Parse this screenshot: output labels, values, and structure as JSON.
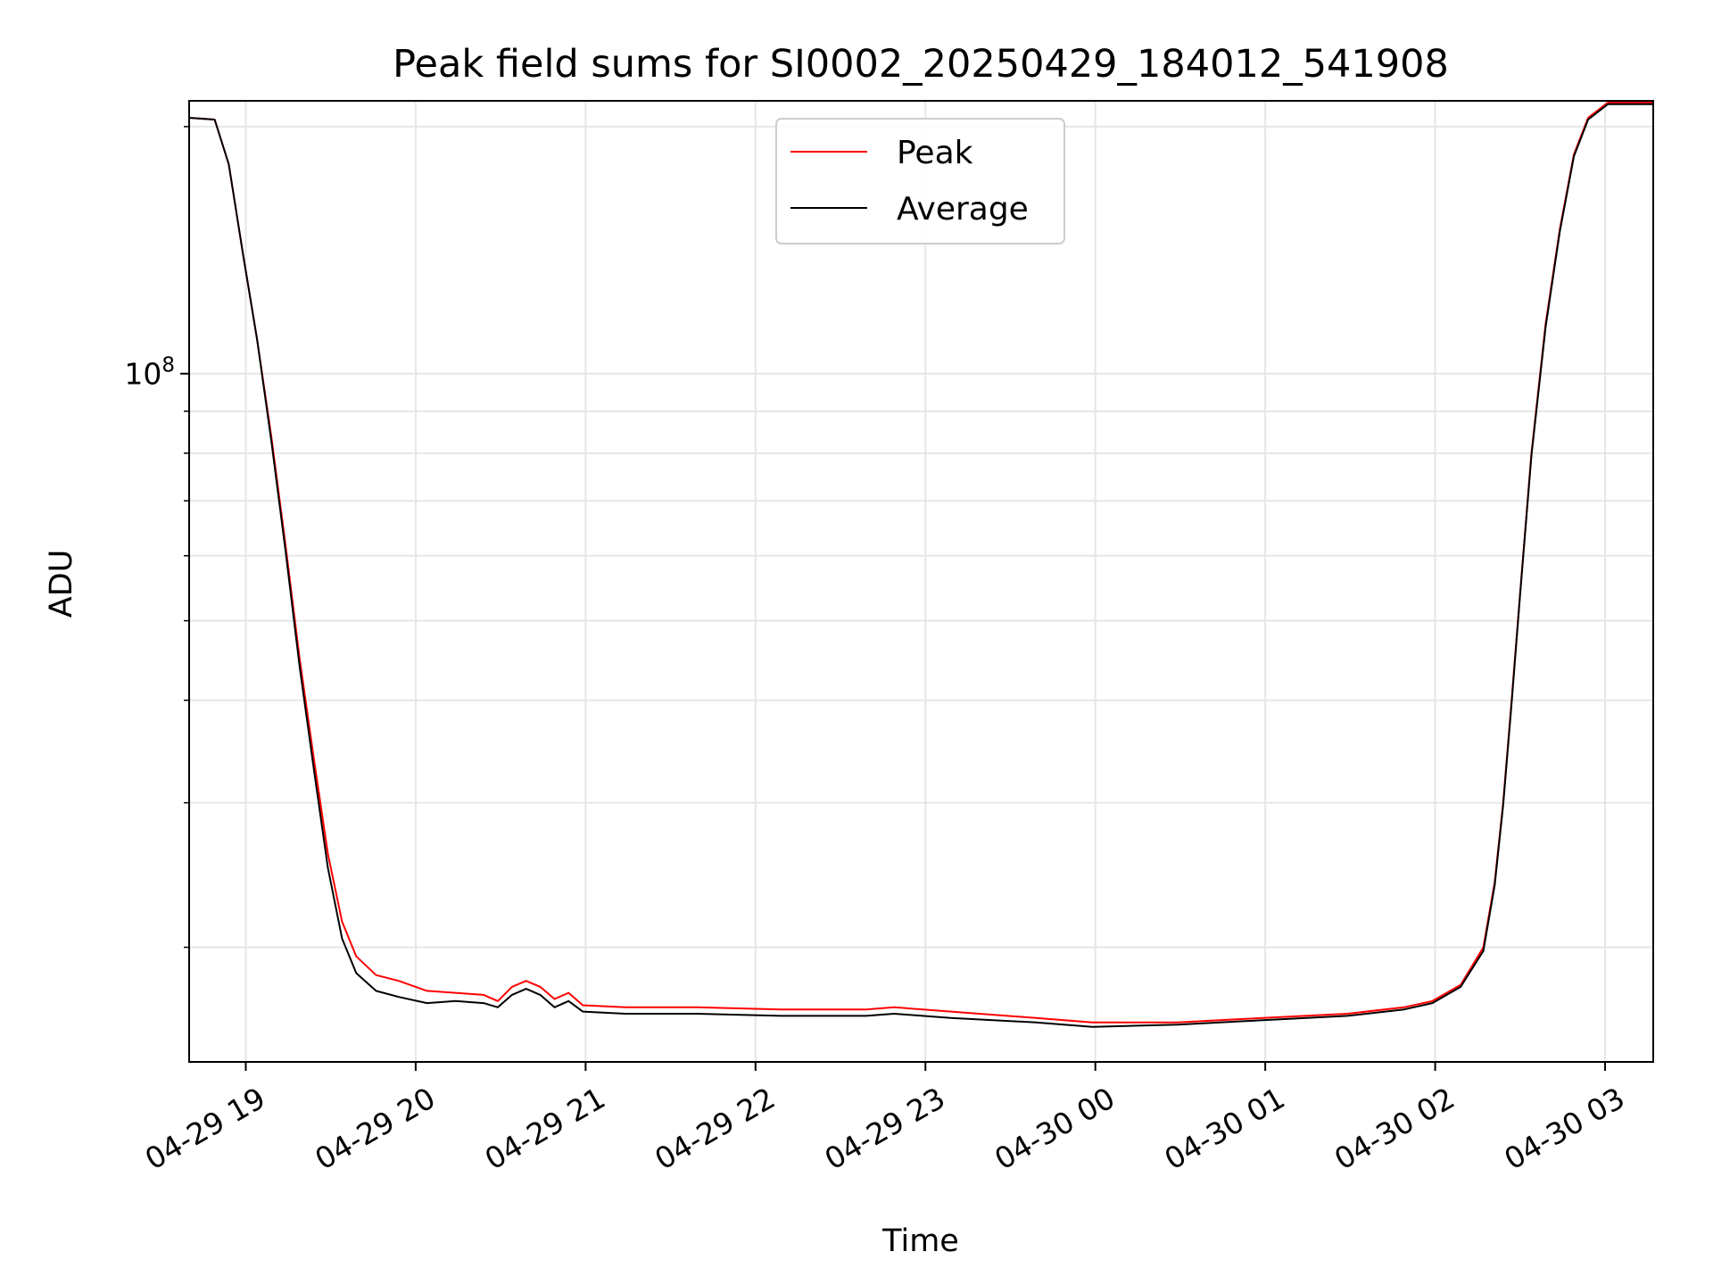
{
  "chart_data": {
    "type": "line",
    "title": "Peak field sums for SI0002_20250429_184012_541908",
    "xlabel": "Time",
    "ylabel": "ADU",
    "y_scale": "log",
    "ylim": [
      14500000,
      215000000
    ],
    "xlim": [
      "2025-04-29 18:40",
      "2025-04-30 03:17"
    ],
    "grid": true,
    "legend_position": "upper center",
    "x_ticks": [
      {
        "t": "2025-04-29 19:00",
        "label": "04-29 19"
      },
      {
        "t": "2025-04-29 20:00",
        "label": "04-29 20"
      },
      {
        "t": "2025-04-29 21:00",
        "label": "04-29 21"
      },
      {
        "t": "2025-04-29 22:00",
        "label": "04-29 22"
      },
      {
        "t": "2025-04-29 23:00",
        "label": "04-29 23"
      },
      {
        "t": "2025-04-30 00:00",
        "label": "04-30 00"
      },
      {
        "t": "2025-04-30 01:00",
        "label": "04-30 01"
      },
      {
        "t": "2025-04-30 02:00",
        "label": "04-30 02"
      },
      {
        "t": "2025-04-30 03:00",
        "label": "04-30 03"
      }
    ],
    "y_major_ticks": [
      {
        "value": 100000000,
        "label_base": "10",
        "label_exp": "8"
      }
    ],
    "y_minor_ticks": [
      20000000,
      30000000,
      40000000,
      50000000,
      60000000,
      70000000,
      80000000,
      90000000,
      200000000
    ],
    "series": [
      {
        "name": "Peak",
        "color": "#ff0000",
        "points": [
          [
            "2025-04-29 18:40",
            205000000
          ],
          [
            "2025-04-29 18:49",
            204000000
          ],
          [
            "2025-04-29 18:54",
            180000000
          ],
          [
            "2025-04-29 18:59",
            140000000
          ],
          [
            "2025-04-29 19:04",
            110000000
          ],
          [
            "2025-04-29 19:09",
            84000000
          ],
          [
            "2025-04-29 19:14",
            62000000
          ],
          [
            "2025-04-29 19:19",
            45000000
          ],
          [
            "2025-04-29 19:24",
            34000000
          ],
          [
            "2025-04-29 19:29",
            26000000
          ],
          [
            "2025-04-29 19:34",
            21500000
          ],
          [
            "2025-04-29 19:39",
            19500000
          ],
          [
            "2025-04-29 19:46",
            18500000
          ],
          [
            "2025-04-29 19:54",
            18200000
          ],
          [
            "2025-04-29 20:04",
            17700000
          ],
          [
            "2025-04-29 20:14",
            17600000
          ],
          [
            "2025-04-29 20:24",
            17500000
          ],
          [
            "2025-04-29 20:29",
            17200000
          ],
          [
            "2025-04-29 20:34",
            17900000
          ],
          [
            "2025-04-29 20:39",
            18200000
          ],
          [
            "2025-04-29 20:44",
            17900000
          ],
          [
            "2025-04-29 20:49",
            17300000
          ],
          [
            "2025-04-29 20:54",
            17600000
          ],
          [
            "2025-04-29 20:59",
            17000000
          ],
          [
            "2025-04-29 21:14",
            16900000
          ],
          [
            "2025-04-29 21:39",
            16900000
          ],
          [
            "2025-04-29 22:09",
            16800000
          ],
          [
            "2025-04-29 22:39",
            16800000
          ],
          [
            "2025-04-29 22:49",
            16900000
          ],
          [
            "2025-04-29 23:09",
            16700000
          ],
          [
            "2025-04-29 23:39",
            16400000
          ],
          [
            "2025-04-29 23:59",
            16200000
          ],
          [
            "2025-04-30 00:29",
            16200000
          ],
          [
            "2025-04-30 00:59",
            16400000
          ],
          [
            "2025-04-30 01:29",
            16600000
          ],
          [
            "2025-04-30 01:49",
            16900000
          ],
          [
            "2025-04-30 01:59",
            17200000
          ],
          [
            "2025-04-30 02:09",
            18000000
          ],
          [
            "2025-04-30 02:17",
            20000000
          ],
          [
            "2025-04-30 02:21",
            24000000
          ],
          [
            "2025-04-30 02:24",
            30000000
          ],
          [
            "2025-04-30 02:27",
            40000000
          ],
          [
            "2025-04-30 02:30",
            54000000
          ],
          [
            "2025-04-30 02:34",
            80000000
          ],
          [
            "2025-04-30 02:39",
            115000000
          ],
          [
            "2025-04-30 02:44",
            150000000
          ],
          [
            "2025-04-30 02:49",
            185000000
          ],
          [
            "2025-04-30 02:54",
            205000000
          ],
          [
            "2025-04-30 03:01",
            214000000
          ],
          [
            "2025-04-30 03:17",
            214000000
          ]
        ]
      },
      {
        "name": "Average",
        "color": "#000000",
        "points": [
          [
            "2025-04-29 18:40",
            205000000
          ],
          [
            "2025-04-29 18:49",
            204000000
          ],
          [
            "2025-04-29 18:54",
            180000000
          ],
          [
            "2025-04-29 18:59",
            140000000
          ],
          [
            "2025-04-29 19:04",
            110000000
          ],
          [
            "2025-04-29 19:09",
            83000000
          ],
          [
            "2025-04-29 19:14",
            61000000
          ],
          [
            "2025-04-29 19:19",
            44000000
          ],
          [
            "2025-04-29 19:24",
            33000000
          ],
          [
            "2025-04-29 19:29",
            25000000
          ],
          [
            "2025-04-29 19:34",
            20500000
          ],
          [
            "2025-04-29 19:39",
            18600000
          ],
          [
            "2025-04-29 19:46",
            17700000
          ],
          [
            "2025-04-29 19:54",
            17400000
          ],
          [
            "2025-04-29 20:04",
            17100000
          ],
          [
            "2025-04-29 20:14",
            17200000
          ],
          [
            "2025-04-29 20:24",
            17100000
          ],
          [
            "2025-04-29 20:29",
            16900000
          ],
          [
            "2025-04-29 20:34",
            17500000
          ],
          [
            "2025-04-29 20:39",
            17800000
          ],
          [
            "2025-04-29 20:44",
            17500000
          ],
          [
            "2025-04-29 20:49",
            16900000
          ],
          [
            "2025-04-29 20:54",
            17200000
          ],
          [
            "2025-04-29 20:59",
            16700000
          ],
          [
            "2025-04-29 21:14",
            16600000
          ],
          [
            "2025-04-29 21:39",
            16600000
          ],
          [
            "2025-04-29 22:09",
            16500000
          ],
          [
            "2025-04-29 22:39",
            16500000
          ],
          [
            "2025-04-29 22:49",
            16600000
          ],
          [
            "2025-04-29 23:09",
            16400000
          ],
          [
            "2025-04-29 23:39",
            16200000
          ],
          [
            "2025-04-29 23:59",
            16000000
          ],
          [
            "2025-04-30 00:29",
            16100000
          ],
          [
            "2025-04-30 00:59",
            16300000
          ],
          [
            "2025-04-30 01:29",
            16500000
          ],
          [
            "2025-04-30 01:49",
            16800000
          ],
          [
            "2025-04-30 01:59",
            17100000
          ],
          [
            "2025-04-30 02:09",
            17900000
          ],
          [
            "2025-04-30 02:17",
            19800000
          ],
          [
            "2025-04-30 02:21",
            23800000
          ],
          [
            "2025-04-30 02:24",
            29800000
          ],
          [
            "2025-04-30 02:27",
            39700000
          ],
          [
            "2025-04-30 02:30",
            53800000
          ],
          [
            "2025-04-30 02:34",
            79500000
          ],
          [
            "2025-04-30 02:39",
            114000000
          ],
          [
            "2025-04-30 02:44",
            149000000
          ],
          [
            "2025-04-30 02:49",
            184000000
          ],
          [
            "2025-04-30 02:54",
            204000000
          ],
          [
            "2025-04-30 03:01",
            213000000
          ],
          [
            "2025-04-30 03:17",
            213000000
          ]
        ]
      }
    ]
  }
}
